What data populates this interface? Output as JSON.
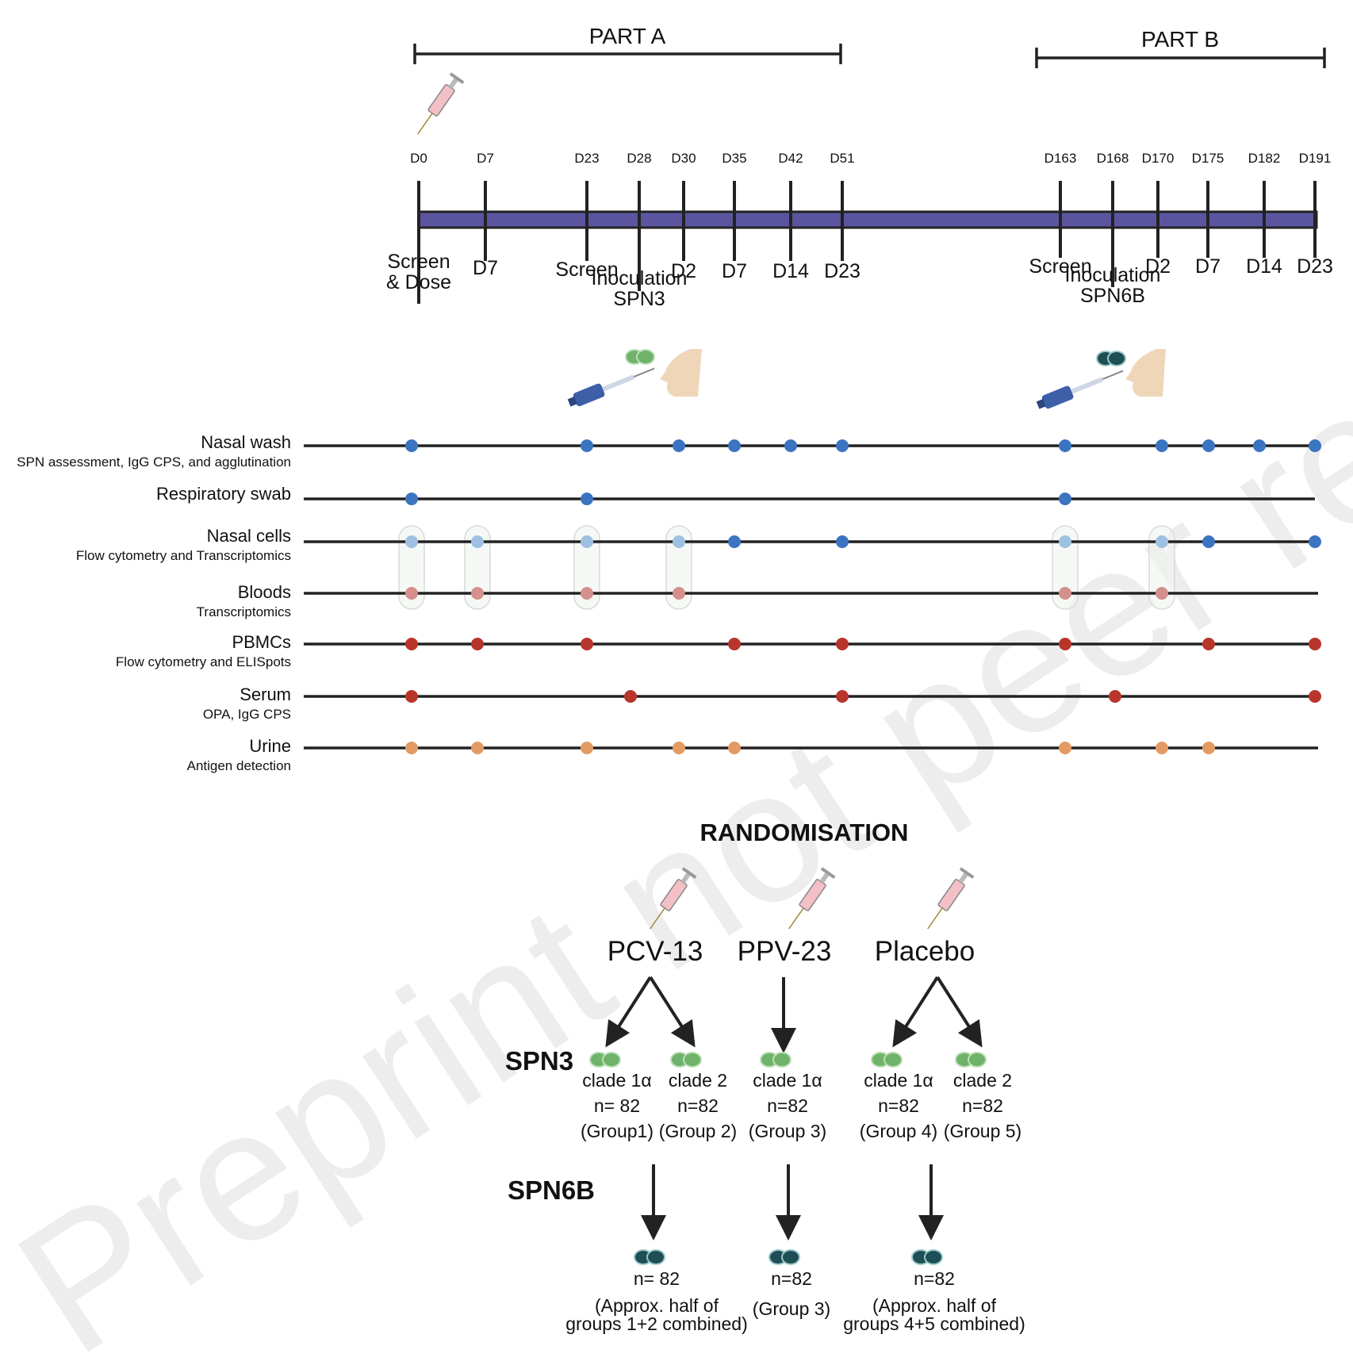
{
  "watermark": "Preprint not peer reviewed",
  "parts": {
    "a": "PART A",
    "b": "PART B"
  },
  "study_days": [
    "D0",
    "D7",
    "D23",
    "D28",
    "D30",
    "D35",
    "D42",
    "D51",
    "D163",
    "D168",
    "D170",
    "D175",
    "D182",
    "D191"
  ],
  "visit_labels": [
    [
      "Screen",
      "& Dose"
    ],
    [
      "D7"
    ],
    [
      "Screen"
    ],
    [
      "Inoculation",
      "SPN3"
    ],
    [
      "D2"
    ],
    [
      "D7"
    ],
    [
      "D14"
    ],
    [
      "D23"
    ],
    [
      "Screen"
    ],
    [
      "Inoculation",
      "SPN6B"
    ],
    [
      "D2"
    ],
    [
      "D7"
    ],
    [
      "D14"
    ],
    [
      "D23"
    ]
  ],
  "sample_rows": [
    {
      "label": "Nasal wash",
      "sublabel": "SPN assessment, IgG CPS,  and agglutination",
      "color": "#3b74c0",
      "days": [
        "D0",
        "D23",
        "D30",
        "D35",
        "D42",
        "D51",
        "D163",
        "D170",
        "D175",
        "D182",
        "D191"
      ]
    },
    {
      "label": "Respiratory swab",
      "sublabel": "",
      "color": "#3b74c0",
      "days": [
        "D0",
        "D23",
        "D163"
      ]
    },
    {
      "label": "Nasal cells",
      "sublabel": "Flow cytometry and Transcriptomics",
      "color": "#3b74c0",
      "days": [
        "D0",
        "D7",
        "D23",
        "D30",
        "D35",
        "D51",
        "D163",
        "D170",
        "D175",
        "D191"
      ],
      "light_days": [
        "D0",
        "D7",
        "D23",
        "D30",
        "D163",
        "D170"
      ],
      "light_color": "#9ec0e2"
    },
    {
      "label": "Bloods",
      "sublabel": "Transcriptomics",
      "color": "#d58f8c",
      "days": [
        "D0",
        "D7",
        "D23",
        "D30",
        "D163",
        "D170"
      ]
    },
    {
      "label": "PBMCs",
      "sublabel": "Flow cytometry and ELISpots",
      "color": "#b8352c",
      "days": [
        "D0",
        "D7",
        "D23",
        "D35",
        "D51",
        "D163",
        "D175",
        "D191"
      ]
    },
    {
      "label": "Serum",
      "sublabel": "OPA, IgG CPS",
      "color": "#b8352c",
      "days": [
        "D0",
        "D28",
        "D51",
        "D168",
        "D191"
      ]
    },
    {
      "label": "Urine",
      "sublabel": "Antigen detection",
      "color": "#e39a63",
      "days": [
        "D0",
        "D7",
        "D23",
        "D30",
        "D35",
        "D163",
        "D170",
        "D175"
      ]
    }
  ],
  "randomisation": {
    "title": "RANDOMISATION",
    "arms": [
      "PCV-13",
      "PPV-23",
      "Placebo"
    ],
    "challenge_a": "SPN3",
    "challenge_b": "SPN6B",
    "groups": [
      {
        "clade": "clade 1α",
        "n": "n= 82",
        "group": "(Group1)"
      },
      {
        "clade": "clade 2",
        "n": "n=82",
        "group": "(Group 2)"
      },
      {
        "clade": "clade 1α",
        "n": "n=82",
        "group": "(Group 3)"
      },
      {
        "clade": "clade 1α",
        "n": "n=82",
        "group": "(Group 4)"
      },
      {
        "clade": "clade 2",
        "n": "n=82",
        "group": "(Group 5)"
      }
    ],
    "part_b_groups": [
      {
        "n": "n= 82",
        "note": [
          "(Approx. half of",
          "groups 1+2 combined)"
        ]
      },
      {
        "n": "n=82",
        "note": [
          "(Group 3)"
        ]
      },
      {
        "n": "n=82",
        "note": [
          "(Approx. half of",
          "groups 4+5 combined)"
        ]
      }
    ]
  },
  "colors": {
    "timeline_bar": "#5b55a0",
    "line": "#222222",
    "spn3_bacteria": "#6fb26a",
    "spn6b_bacteria": "#1e4f55",
    "syringe_body": "#f2c0c5",
    "pipette": "#3d5fa8",
    "face": "#f0d6b8"
  }
}
